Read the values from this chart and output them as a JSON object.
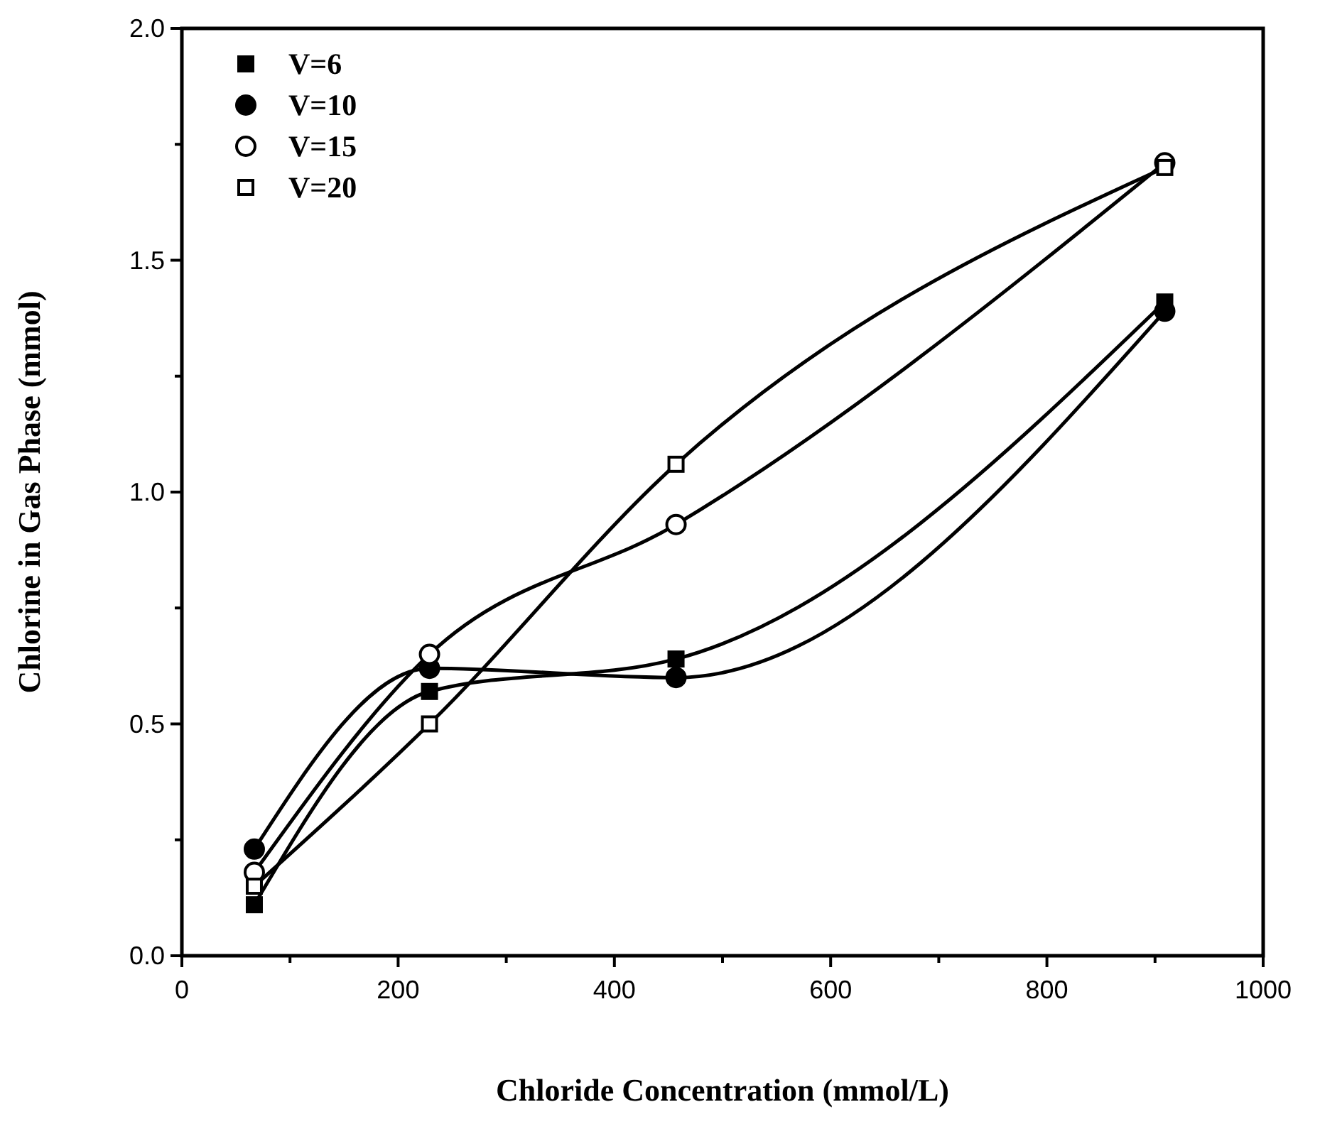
{
  "chart_data": {
    "type": "line",
    "xlabel": "Chloride Concentration (mmol/L)",
    "ylabel": "Chlorine in Gas Phase (mmol)",
    "x": [
      67,
      229,
      457,
      909
    ],
    "series": [
      {
        "name": "V=6",
        "color": "#000000",
        "marker": "square",
        "colors": [
          "#000000",
          "#000000",
          "#000000",
          "#000000"
        ],
        "values": [
          0.11,
          0.57,
          0.64,
          1.41
        ]
      },
      {
        "name": "V=10",
        "color": "#000000",
        "marker": "circle",
        "colors": [
          "#000000",
          "#000000",
          "#000000",
          "#000000"
        ],
        "values": [
          0.23,
          0.62,
          0.6,
          1.39
        ]
      },
      {
        "name": "V=15",
        "color": "#000000",
        "marker": "circle",
        "colors": [
          "#ffffff",
          "#ffffff",
          "#ffffff",
          "#ffffff"
        ],
        "values": [
          0.18,
          0.65,
          0.93,
          1.71
        ]
      },
      {
        "name": "V=20",
        "color": "#000000",
        "marker": "square",
        "colors": [
          "#ffffff",
          "#ffffff",
          "#ffffff",
          "#ffffff"
        ],
        "values": [
          0.15,
          0.5,
          1.06,
          1.7
        ]
      }
    ],
    "xlim": [
      0,
      1000
    ],
    "ylim": [
      0,
      2
    ],
    "xticks": [
      0,
      {
        "value": 100,
        "label": null
      },
      200,
      {
        "value": 300,
        "label": null
      },
      400,
      {
        "value": 500,
        "label": null
      },
      600,
      {
        "value": 700,
        "label": null
      },
      800,
      {
        "value": 900,
        "label": null
      },
      1000
    ],
    "yticks": [
      {
        "value": 0,
        "label": "0.0"
      },
      {
        "value": 0.25,
        "label": null
      },
      {
        "value": 0.5,
        "label": "0.5"
      },
      {
        "value": 0.75,
        "label": null
      },
      {
        "value": 1,
        "label": "1.0"
      },
      {
        "value": 1.25,
        "label": null
      },
      {
        "value": 1.5,
        "label": "1.5"
      },
      {
        "value": 1.75,
        "label": null
      },
      {
        "value": 2,
        "label": "2.0"
      }
    ],
    "grid": false,
    "legend": "top left",
    "line_style": "solid"
  }
}
